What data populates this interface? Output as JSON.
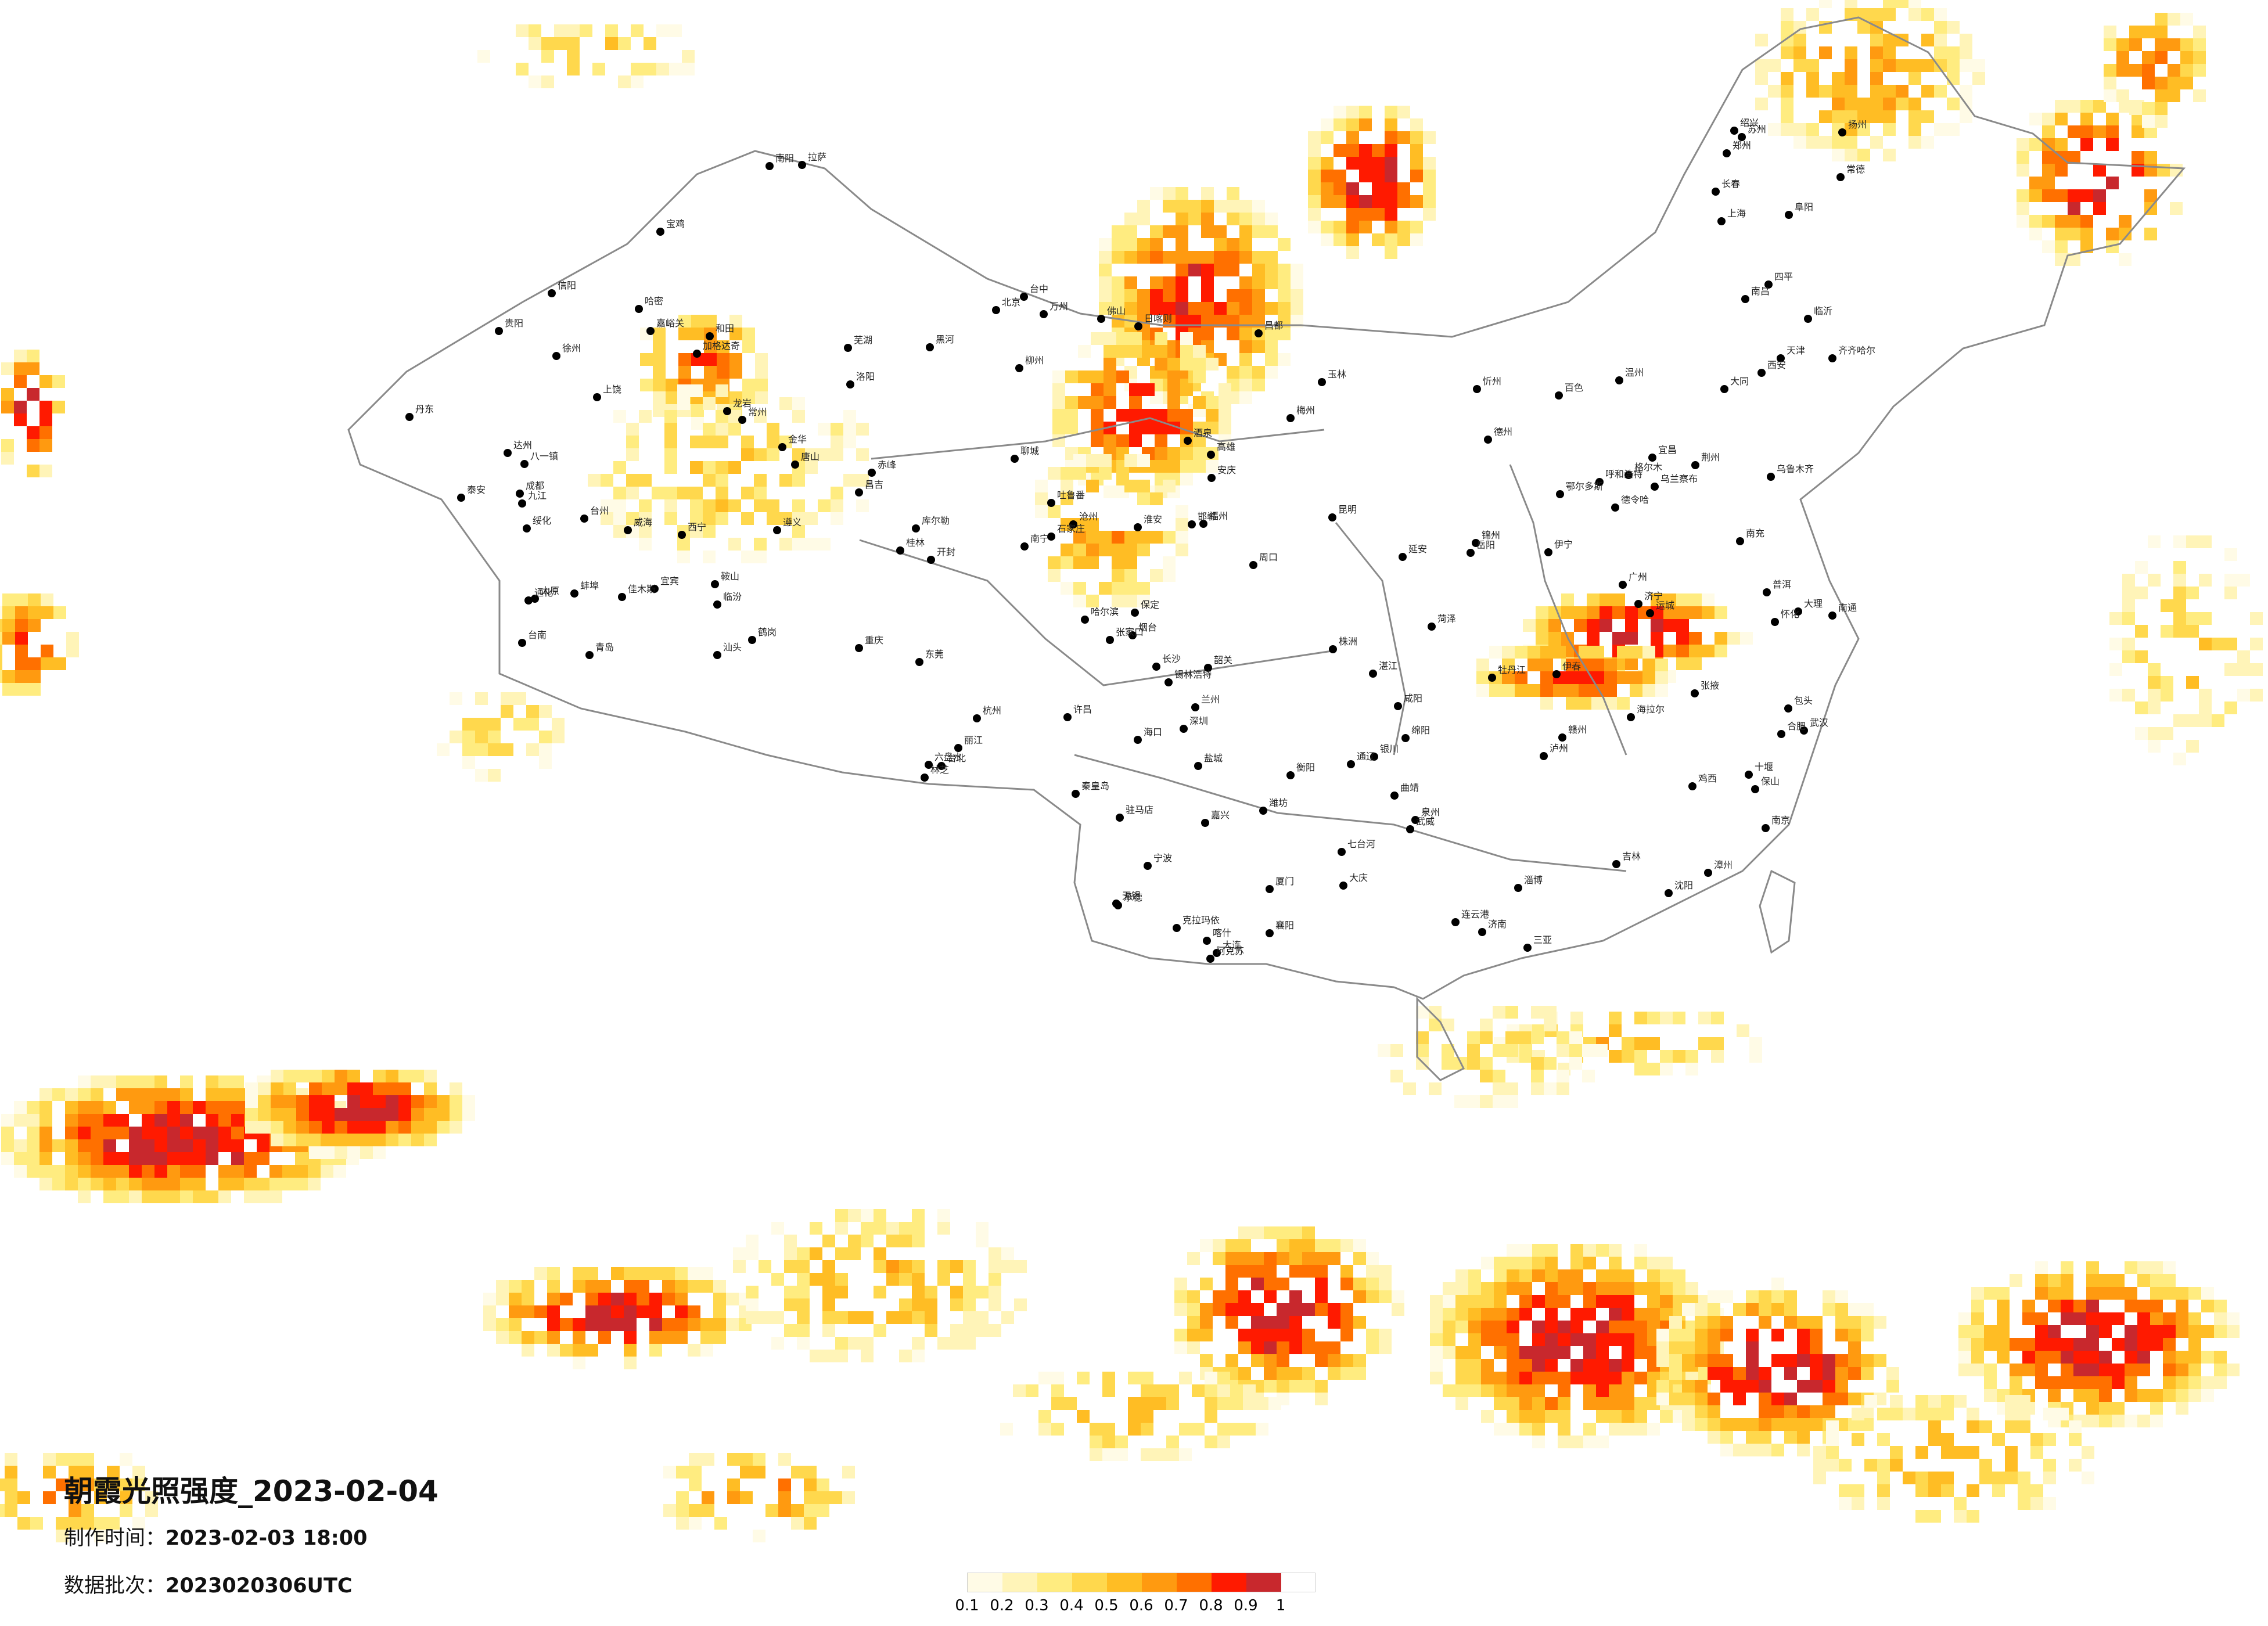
{
  "title": "朝霞光照强度_2023-02-04",
  "made_time_label": "制作时间：",
  "made_time_value": "2023-02-03 18:00",
  "batch_label": "数据批次：",
  "batch_value": "2023020306UTC",
  "legend": {
    "ticks": [
      "0.1",
      "0.2",
      "0.3",
      "0.4",
      "0.5",
      "0.6",
      "0.7",
      "0.8",
      "0.9",
      "1"
    ],
    "colors": [
      "#fffbe6",
      "#fff4b8",
      "#ffec80",
      "#ffd84d",
      "#ffbd24",
      "#ff9a10",
      "#ff7000",
      "#ff1a00",
      "#c8282d"
    ]
  },
  "cities": [
    "乌鲁木齐",
    "克拉玛依",
    "伊宁",
    "阿克苏",
    "和田",
    "喀什",
    "哈密",
    "库尔勒",
    "吐鲁番",
    "昌吉",
    "嘉峪关",
    "酒泉",
    "张掖",
    "武威",
    "兰州",
    "西宁",
    "格尔木",
    "德令哈",
    "拉萨",
    "日喀则",
    "林芝",
    "昌都",
    "八一镇",
    "银川",
    "呼和浩特",
    "包头",
    "鄂尔多斯",
    "西安",
    "咸阳",
    "宝鸡",
    "延安",
    "太原",
    "大同",
    "忻州",
    "临汾",
    "运城",
    "郑州",
    "洛阳",
    "开封",
    "南阳",
    "信阳",
    "驻马店",
    "许昌",
    "周口",
    "北京",
    "天津",
    "石家庄",
    "保定",
    "唐山",
    "秦皇岛",
    "张家口",
    "承德",
    "沧州",
    "邯郸",
    "济南",
    "青岛",
    "烟台",
    "威海",
    "潍坊",
    "淄博",
    "临沂",
    "济宁",
    "泰安",
    "德州",
    "聊城",
    "菏泽",
    "徐州",
    "连云港",
    "南京",
    "苏州",
    "无锡",
    "常州",
    "南通",
    "扬州",
    "盐城",
    "淮安",
    "上海",
    "杭州",
    "宁波",
    "温州",
    "绍兴",
    "嘉兴",
    "台州",
    "金华",
    "合肥",
    "芜湖",
    "蚌埠",
    "阜阳",
    "安庆",
    "武汉",
    "宜昌",
    "襄阳",
    "十堰",
    "荆州",
    "长沙",
    "岳阳",
    "常德",
    "衡阳",
    "株洲",
    "怀化",
    "南昌",
    "九江",
    "赣州",
    "上饶",
    "福州",
    "厦门",
    "泉州",
    "漳州",
    "龙岩",
    "广州",
    "深圳",
    "东莞",
    "佛山",
    "汕头",
    "湛江",
    "韶关",
    "梅州",
    "南宁",
    "桂林",
    "柳州",
    "玉林",
    "百色",
    "海口",
    "三亚",
    "昆明",
    "大理",
    "丽江",
    "曲靖",
    "保山",
    "普洱",
    "贵阳",
    "遵义",
    "六盘水",
    "成都",
    "绵阳",
    "南充",
    "宜宾",
    "泸州",
    "达州",
    "重庆",
    "万州",
    "沈阳",
    "大连",
    "鞍山",
    "锦州",
    "丹东",
    "长春",
    "吉林",
    "四平",
    "通化",
    "哈尔滨",
    "齐齐哈尔",
    "牡丹江",
    "佳木斯",
    "大庆",
    "伊春",
    "鸡西",
    "鹤岗",
    "七台河",
    "绥化",
    "黑河",
    "加格达奇",
    "海拉尔",
    "通辽",
    "赤峰",
    "锡林浩特",
    "乌兰察布",
    "台北",
    "高雄",
    "台中",
    "台南"
  ]
}
